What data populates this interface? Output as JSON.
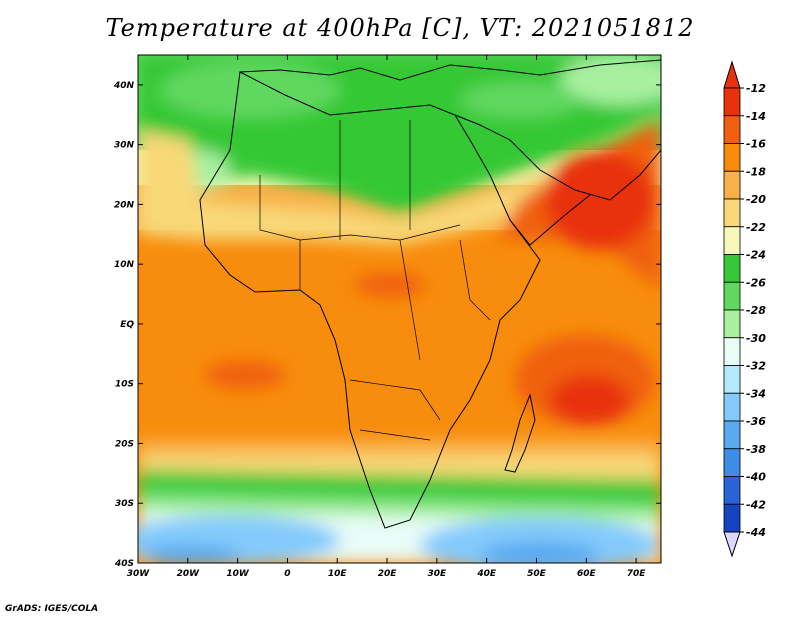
{
  "title": "Temperature at 400hPa [C], VT: 2021051812",
  "credit": "GrADS: IGES/COLA",
  "map": {
    "lon_labels": [
      "30W",
      "20W",
      "10W",
      "0",
      "10E",
      "20E",
      "30E",
      "40E",
      "50E",
      "60E",
      "70E"
    ],
    "lat_labels": [
      "40N",
      "30N",
      "20N",
      "10N",
      "EQ",
      "10S",
      "20S",
      "30S",
      "40S"
    ],
    "lon_range": [
      -30,
      75
    ],
    "lat_range": [
      -40,
      45
    ]
  },
  "colorbar": {
    "labels": [
      "-12",
      "-14",
      "-16",
      "-18",
      "-20",
      "-22",
      "-24",
      "-26",
      "-28",
      "-30",
      "-32",
      "-34",
      "-36",
      "-38",
      "-40",
      "-42",
      "-44"
    ],
    "colors": [
      "#e8320c",
      "#f06010",
      "#f88c0c",
      "#f8b048",
      "#f8d878",
      "#f8f8b8",
      "#36c836",
      "#60d860",
      "#a8f0a0",
      "#e8fcf8",
      "#b4e8fc",
      "#84cafc",
      "#5aaaf0",
      "#3c8ce8",
      "#2864d8",
      "#1444c0",
      "#0a1e78"
    ],
    "top_arrow_color": "#e8320c",
    "bottom_arrow_color": "#dcd8fc"
  }
}
